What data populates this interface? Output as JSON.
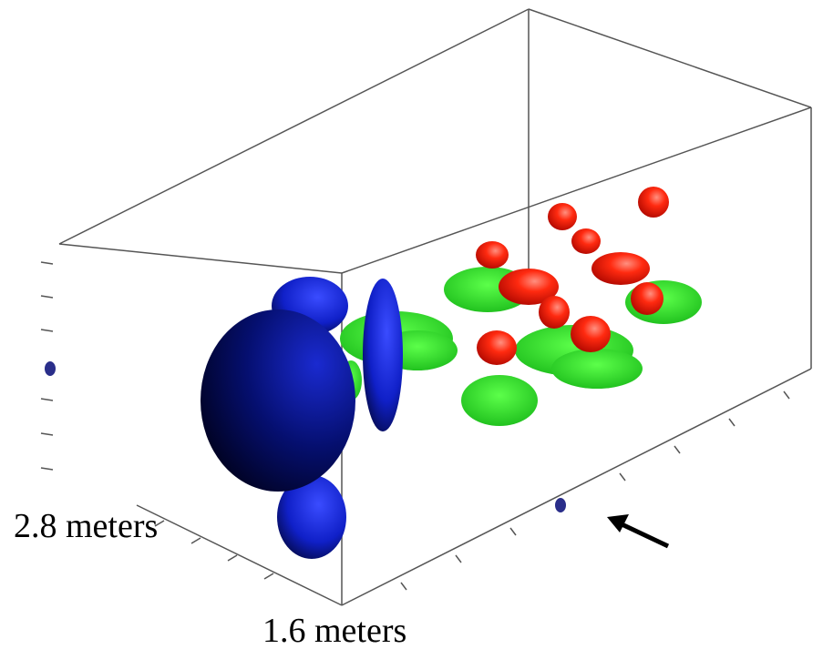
{
  "labels": {
    "depth": "2.8 meters",
    "width": "1.6 meters"
  }
}
